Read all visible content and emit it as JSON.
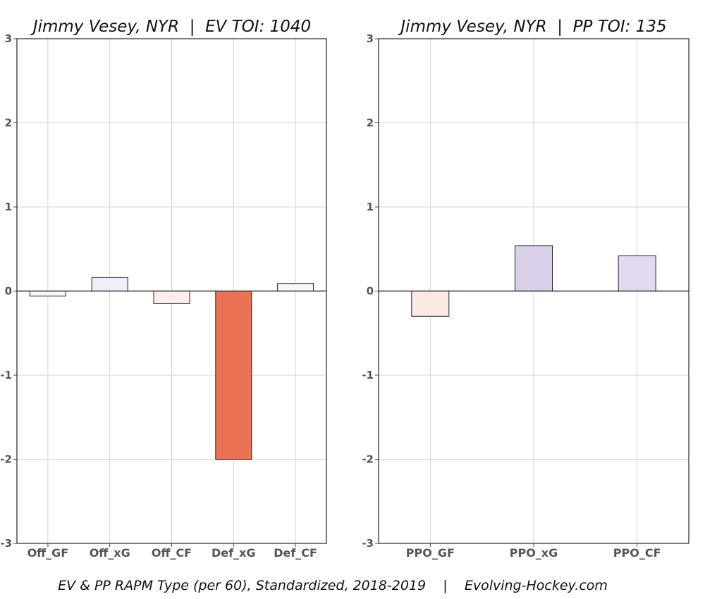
{
  "chart_data": [
    {
      "type": "bar",
      "title": "Jimmy Vesey, NYR  |  EV TOI: 1040",
      "categories": [
        "Off_GF",
        "Off_xG",
        "Off_CF",
        "Def_xG",
        "Def_CF"
      ],
      "values": [
        -0.06,
        0.16,
        -0.15,
        -2.0,
        0.09
      ],
      "colors": [
        "#fbf4f6",
        "#f0eef8",
        "#fdeeed",
        "#ec7256",
        "#f7f6fb"
      ],
      "ylim": [
        -3,
        3
      ],
      "yticks": [
        3,
        2,
        1,
        0,
        -1,
        -2,
        -3
      ],
      "grid": true
    },
    {
      "type": "bar",
      "title": "Jimmy Vesey, NYR  |  PP TOI: 135",
      "categories": [
        "PPO_GF",
        "PPO_xG",
        "PPO_CF"
      ],
      "values": [
        -0.3,
        0.54,
        0.42
      ],
      "colors": [
        "#fde9e1",
        "#d9d0ea",
        "#e1d9ee"
      ],
      "ylim": [
        -3,
        3
      ],
      "yticks": [
        3,
        2,
        1,
        0,
        -1,
        -2,
        -3
      ],
      "grid": true
    }
  ],
  "footer": "EV & PP RAPM Type (per 60), Standardized, 2018-2019    |    Evolving-Hockey.com"
}
